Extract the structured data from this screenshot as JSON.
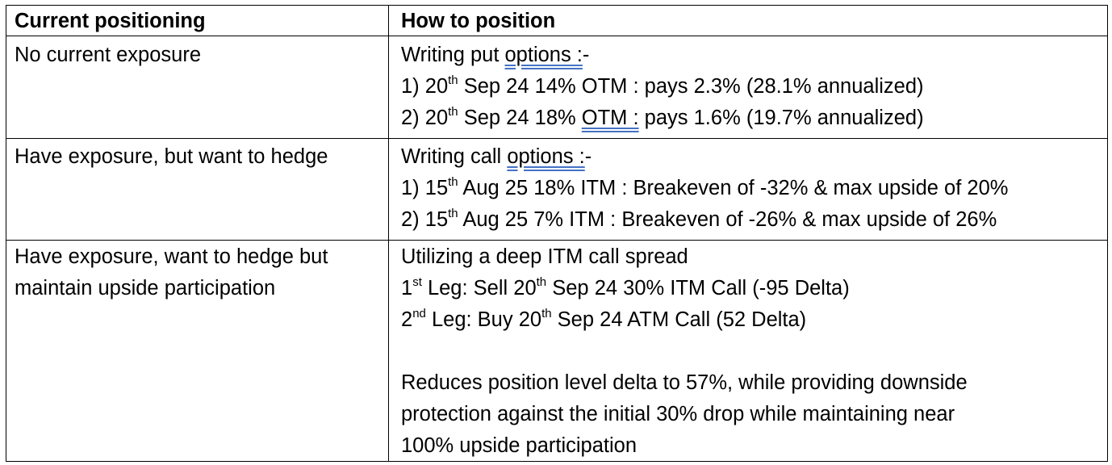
{
  "headers": {
    "current": "Current positioning",
    "how": "How to position"
  },
  "rows": [
    {
      "current": [
        "No current exposure"
      ],
      "how": {
        "intro_a": "Writing put ",
        "intro_u": "options :",
        "intro_b": "-",
        "l1": {
          "num": "1) 20",
          "sup": "th",
          "rest": " Sep 24 14% OTM : pays 2.3% (28.1% annualized)"
        },
        "l2": {
          "num": "2) 20",
          "sup": "th",
          "mid": " Sep 24 18% ",
          "u": "OTM :",
          "rest": " pays 1.6% (19.7% annualized)"
        }
      }
    },
    {
      "current": [
        "Have exposure, but want to hedge"
      ],
      "how": {
        "intro_a": "Writing call ",
        "intro_u": "options :",
        "intro_b": "-",
        "l1": {
          "num": "1) 15",
          "sup": "th",
          "rest": " Aug 25 18% ITM : Breakeven of -32% & max upside of 20%"
        },
        "l2": {
          "num": "2) 15",
          "sup": "th",
          "rest": " Aug 25 7% ITM : Breakeven of -26% & max upside of 26%"
        }
      }
    },
    {
      "current": [
        "Have exposure, want to hedge but",
        "maintain upside participation"
      ],
      "how": {
        "intro": "Utilizing a deep ITM call spread",
        "l1": {
          "num": "1",
          "sup": "st",
          "mid": " Leg: Sell 20",
          "sup2": "th",
          "rest": " Sep 24 30% ITM Call (-95 Delta)"
        },
        "l2": {
          "num": "2",
          "sup": "nd",
          "mid": " Leg: Buy 20",
          "sup2": "th",
          "rest": " Sep 24 ATM Call (52 Delta)"
        },
        "para": [
          "Reduces position level delta to 57%, while providing downside",
          "protection against the initial 30% drop while maintaining near",
          "100% upside participation"
        ]
      }
    }
  ]
}
